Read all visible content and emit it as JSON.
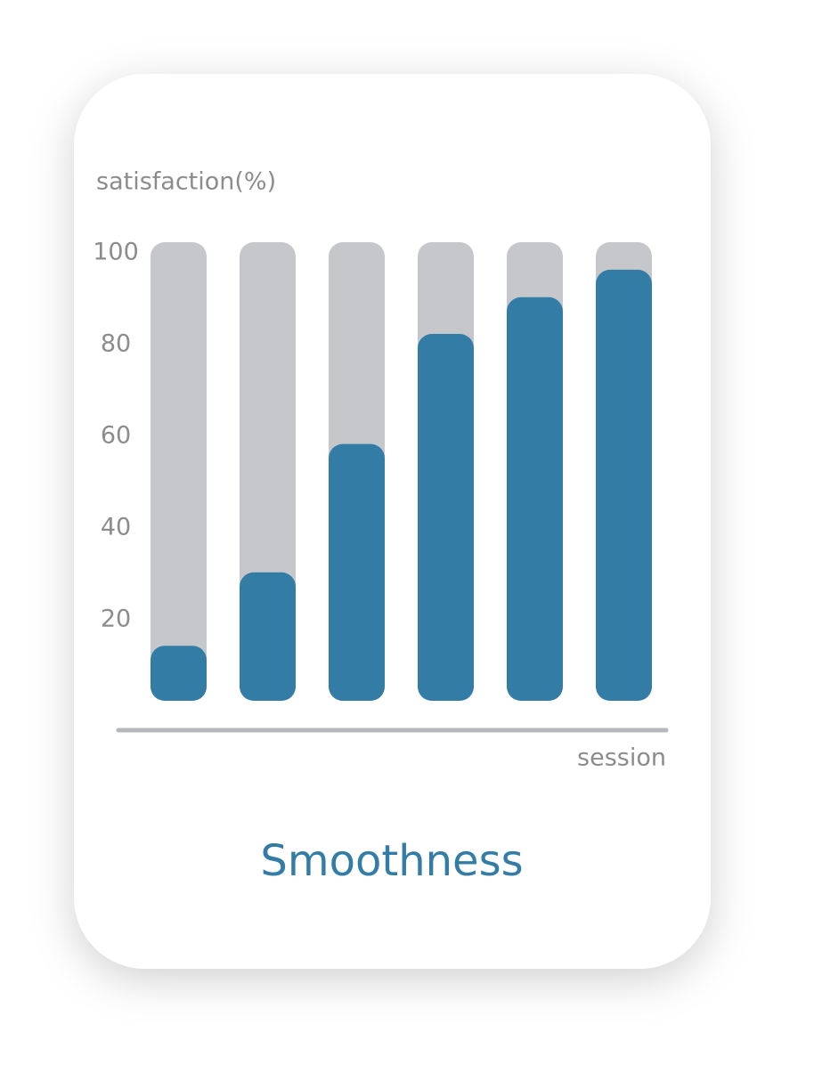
{
  "chart_data": {
    "type": "bar",
    "title": "Smoothness",
    "y_label": "satisfaction(%)",
    "x_label": "session",
    "categories": [
      null,
      null,
      null,
      null,
      null,
      null
    ],
    "values": [
      12,
      28,
      56,
      80,
      88,
      94
    ],
    "color": "#327ca6",
    "track_color": "#c6c7cb",
    "ylim": [
      0,
      100
    ],
    "yticks": [
      20,
      40,
      60,
      80,
      100
    ],
    "grid": false
  }
}
